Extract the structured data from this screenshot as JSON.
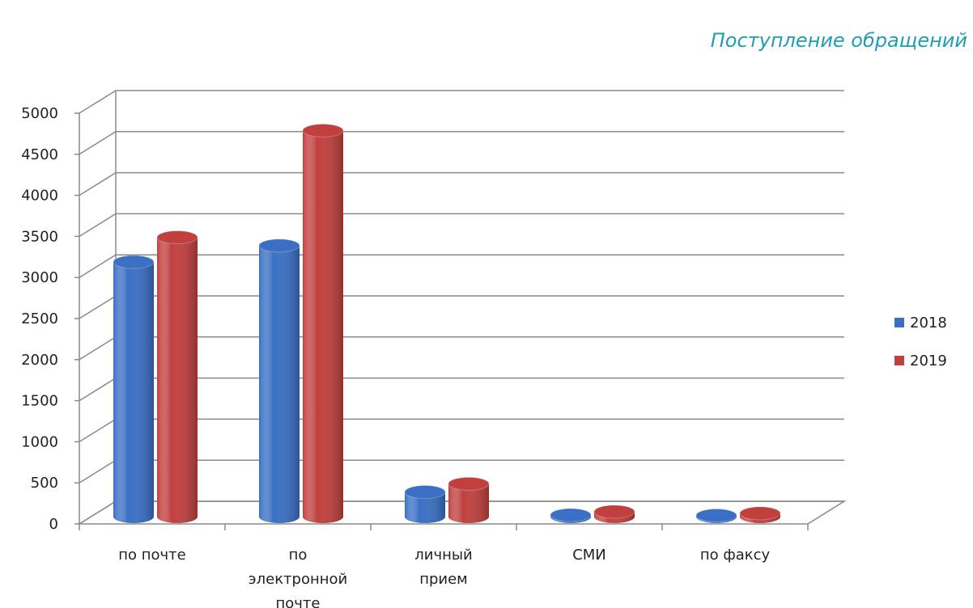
{
  "chart_data": {
    "type": "bar",
    "title": "Поступление обращений",
    "categories": [
      "по почте",
      "по электронной почте",
      "личный прием",
      "СМИ",
      "по факсу"
    ],
    "category_lines": [
      [
        "по почте"
      ],
      [
        "по",
        "электронной",
        "почте"
      ],
      [
        "личный",
        "прием"
      ],
      [
        "СМИ"
      ],
      [
        "по факсу"
      ]
    ],
    "series": [
      {
        "name": "2018",
        "values": [
          3100,
          3300,
          300,
          20,
          15
        ],
        "color": "#3a6fc4"
      },
      {
        "name": "2019",
        "values": [
          3400,
          4700,
          400,
          60,
          40
        ],
        "color": "#c0403e"
      }
    ],
    "ylim": [
      0,
      5000
    ],
    "yticks": [
      0,
      500,
      1000,
      1500,
      2000,
      2500,
      3000,
      3500,
      4000,
      4500,
      5000
    ],
    "grid": true,
    "legend_position": "right",
    "title_color": "#1f9db3"
  }
}
